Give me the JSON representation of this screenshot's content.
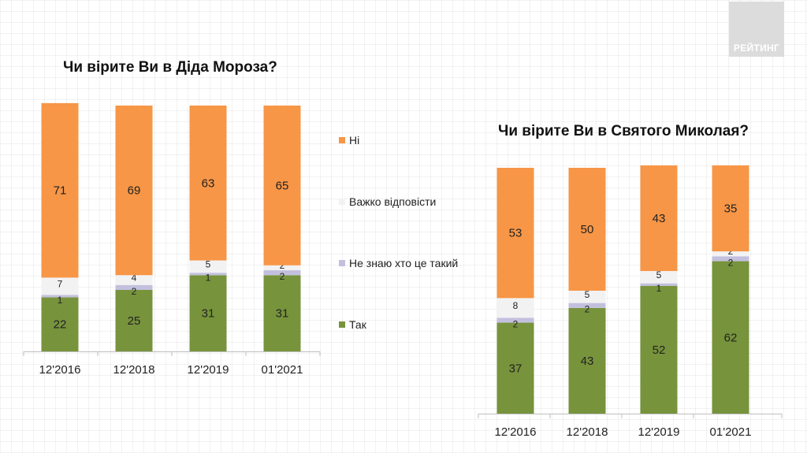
{
  "logo": {
    "text": "РЕЙТИНГ"
  },
  "colors": {
    "ni": "#F79646",
    "vazhko": "#F2F2F2",
    "ne_znayu": "#C3C0DE",
    "tak": "#77933C"
  },
  "legend": [
    {
      "key": "ni",
      "label": "Ні"
    },
    {
      "key": "vazhko",
      "label": "Важко відповісти"
    },
    {
      "key": "ne_znayu",
      "label": "Не знаю хто це такий"
    },
    {
      "key": "tak",
      "label": "Так"
    }
  ],
  "chart_data": [
    {
      "type": "bar",
      "stacked": true,
      "title": "Чи вірите Ви в Діда Мороза?",
      "categories": [
        "12'2016",
        "12'2018",
        "12'2019",
        "01'2021"
      ],
      "series": [
        {
          "key": "tak",
          "name": "Так",
          "values": [
            22,
            25,
            31,
            31
          ]
        },
        {
          "key": "ne_znayu",
          "name": "Не знаю хто це такий",
          "values": [
            1,
            2,
            1,
            2
          ]
        },
        {
          "key": "vazhko",
          "name": "Важко відповісти",
          "values": [
            7,
            4,
            5,
            2
          ]
        },
        {
          "key": "ni",
          "name": "Ні",
          "values": [
            71,
            69,
            63,
            65
          ]
        }
      ],
      "ylim": [
        0,
        100
      ],
      "grid": false,
      "legend": "right"
    },
    {
      "type": "bar",
      "stacked": true,
      "title": "Чи вірите Ви в Святого Миколая?",
      "categories": [
        "12'2016",
        "12'2018",
        "12'2019",
        "01'2021"
      ],
      "series": [
        {
          "key": "tak",
          "name": "Так",
          "values": [
            37,
            43,
            52,
            62
          ]
        },
        {
          "key": "ne_znayu",
          "name": "Не знаю хто це такий",
          "values": [
            2,
            2,
            1,
            2
          ]
        },
        {
          "key": "vazhko",
          "name": "Важко відповісти",
          "values": [
            8,
            5,
            5,
            2
          ]
        },
        {
          "key": "ni",
          "name": "Ні",
          "values": [
            53,
            50,
            43,
            35
          ]
        }
      ],
      "ylim": [
        0,
        100
      ],
      "grid": false,
      "legend": "left"
    }
  ]
}
